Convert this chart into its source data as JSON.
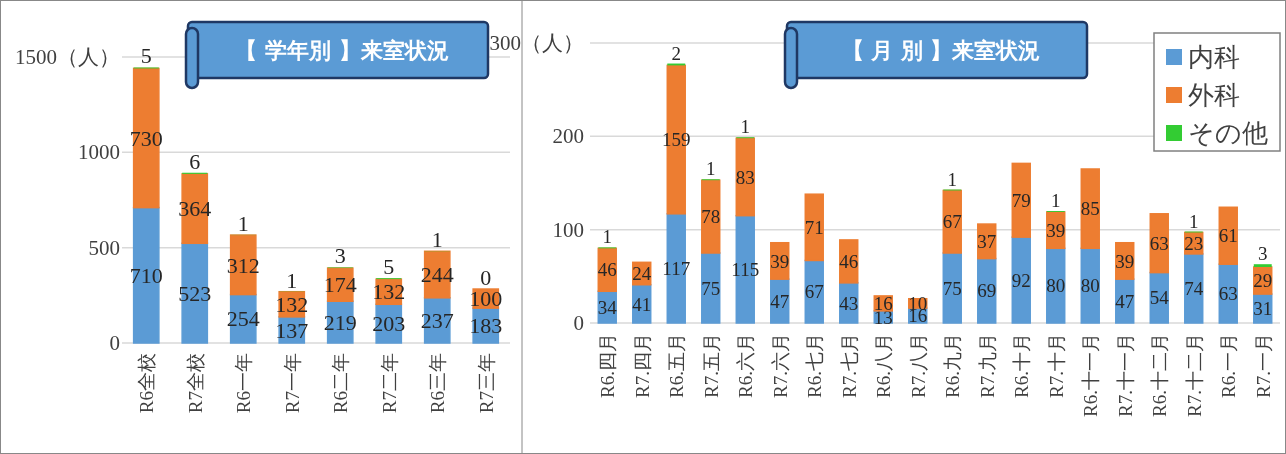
{
  "chart_data": [
    {
      "type": "bar",
      "title": "【 学年別 】来室状況",
      "stacked": true,
      "data_labels": true,
      "grid": "y",
      "legend": false,
      "categories": [
        "R6全校",
        "R7全校",
        "R6一年",
        "R7一年",
        "R6二年",
        "R7二年",
        "R6三年",
        "R7三年"
      ],
      "ylim": [
        0,
        1500
      ],
      "yticks": [
        0,
        500,
        1000,
        {
          "value": 1500,
          "label": "1500（人）"
        }
      ],
      "series": [
        {
          "color": "#5b9bd5",
          "values": [
            710,
            523,
            254,
            137,
            219,
            203,
            237,
            183
          ]
        },
        {
          "color": "#ed7d31",
          "values": [
            730,
            364,
            312,
            132,
            174,
            132,
            244,
            100
          ]
        },
        {
          "color": "#33cc33",
          "values": [
            5,
            6,
            1,
            1,
            3,
            5,
            1,
            0
          ]
        }
      ]
    },
    {
      "type": "bar",
      "title": "【 月 別 】来室状況",
      "stacked": true,
      "grid": "y",
      "legend": "top right",
      "categories": [
        "R6.四月",
        "R7.四月",
        "R6.五月",
        "R7.五月",
        "R6.六月",
        "R7.六月",
        "R6.七月",
        "R7.七月",
        "R6.八月",
        "R7.八月",
        "R6.九月",
        "R7.九月",
        "R6.十月",
        "R7.十月",
        "R6.十一月",
        "R7.十一月",
        "R6.十二月",
        "R7.十二月",
        "R6.一月",
        "R7.一月"
      ],
      "ylim": [
        0,
        300
      ],
      "yticks": [
        0,
        100,
        200,
        {
          "value": 300,
          "label": "300（人）"
        }
      ],
      "series": [
        {
          "name": "内科",
          "color": "#5b9bd5",
          "values": [
            34,
            41,
            117,
            75,
            115,
            47,
            67,
            43,
            13,
            16,
            75,
            69,
            92,
            80,
            80,
            47,
            54,
            74,
            63,
            31
          ],
          "value_labels": [
            "34",
            "41",
            "117",
            "75",
            "115",
            "47",
            "67",
            "43",
            "13",
            "16",
            "75",
            "69",
            "92",
            "80",
            "80",
            "47",
            "54",
            "74",
            "63",
            "31"
          ]
        },
        {
          "name": "外科",
          "color": "#ed7d31",
          "values": [
            46,
            24,
            159,
            78,
            83,
            39,
            71,
            46,
            16,
            10,
            67,
            37,
            79,
            39,
            85,
            39,
            63,
            23,
            61,
            29
          ],
          "value_labels": [
            "46",
            "24",
            "159",
            "78",
            "83",
            "39",
            "71",
            "46",
            "16",
            "10",
            "67",
            "37",
            "79",
            "39",
            "85",
            "39",
            "63",
            "23",
            "61",
            "29"
          ]
        },
        {
          "name": "その他",
          "color": "#33cc33",
          "values": [
            1,
            0,
            2,
            1,
            1,
            0,
            0,
            0,
            0,
            0,
            1,
            0,
            0,
            1,
            0,
            0,
            0,
            1,
            0,
            3
          ],
          "value_labels": [
            "1",
            null,
            "2",
            "1",
            "1",
            null,
            null,
            null,
            null,
            null,
            "1",
            null,
            null,
            "1",
            null,
            null,
            null,
            "1",
            null,
            "3"
          ]
        }
      ]
    }
  ]
}
